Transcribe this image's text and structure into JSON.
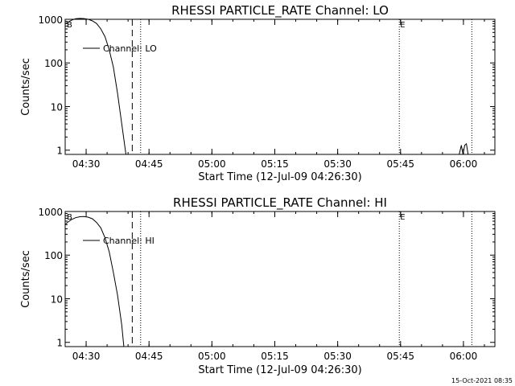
{
  "footer": {
    "timestamp": "15-Oct-2021 08:35"
  },
  "chart_data": [
    {
      "type": "line",
      "title": "RHESSI PARTICLE_RATE Channel: LO",
      "xlabel": "Start Time (12-Jul-09 04:26:30)",
      "ylabel": "Counts/sec",
      "yscale": "log",
      "xlim_minutes": [
        -1.5,
        101.0
      ],
      "ylim": [
        0.8,
        1000
      ],
      "x_tick_labels": [
        "04:30",
        "04:45",
        "05:00",
        "05:15",
        "05:30",
        "05:45",
        "06:00"
      ],
      "x_tick_minutes": [
        3.5,
        18.5,
        33.5,
        48.5,
        63.5,
        78.5,
        93.5
      ],
      "y_tick_labels": [
        "1",
        "10",
        "100",
        "1000"
      ],
      "y_tick_values": [
        1,
        10,
        100,
        1000
      ],
      "legend": {
        "label": "Channel: LO",
        "position": "top-left"
      },
      "series": [
        {
          "x_minutes": [
            -1.5,
            0.0,
            1.0,
            2.0,
            3.0,
            4.0,
            5.0,
            6.0,
            7.0,
            8.0,
            9.0,
            10.0,
            11.0,
            12.0,
            13.0
          ],
          "values": [
            800,
            950,
            1030,
            1050,
            1040,
            1000,
            920,
            800,
            600,
            400,
            200,
            80,
            20,
            4,
            0.8
          ]
        },
        {
          "x_minutes": [
            92.5,
            93.0,
            93.4,
            93.8,
            94.2,
            94.6
          ],
          "values": [
            0.8,
            1.3,
            0.8,
            1.3,
            1.4,
            0.8
          ]
        }
      ],
      "vlines": [
        {
          "x_minutes": 14.5,
          "style": "dashed"
        },
        {
          "x_minutes": 16.5,
          "style": "dotted"
        },
        {
          "x_minutes": 78.2,
          "style": "dotted"
        },
        {
          "x_minutes": 95.5,
          "style": "dotted"
        }
      ],
      "markers": [
        {
          "label": "B",
          "x_minutes": -1.3
        },
        {
          "label": "E",
          "x_minutes": 78.2
        }
      ]
    },
    {
      "type": "line",
      "title": "RHESSI PARTICLE_RATE Channel: HI",
      "xlabel": "Start Time (12-Jul-09 04:26:30)",
      "ylabel": "Counts/sec",
      "yscale": "log",
      "xlim_minutes": [
        -1.5,
        101.0
      ],
      "ylim": [
        0.8,
        1000
      ],
      "x_tick_labels": [
        "04:30",
        "04:45",
        "05:00",
        "05:15",
        "05:30",
        "05:45",
        "06:00"
      ],
      "x_tick_minutes": [
        3.5,
        18.5,
        33.5,
        48.5,
        63.5,
        78.5,
        93.5
      ],
      "y_tick_labels": [
        "1",
        "10",
        "100",
        "1000"
      ],
      "y_tick_values": [
        1,
        10,
        100,
        1000
      ],
      "legend": {
        "label": "Channel: HI",
        "position": "top-left"
      },
      "series": [
        {
          "x_minutes": [
            -1.5,
            -1.0,
            0.0,
            1.0,
            2.0,
            3.0,
            4.0,
            5.0,
            6.0,
            7.0,
            8.0,
            9.0,
            10.0,
            11.0,
            12.0,
            12.5
          ],
          "values": [
            500,
            560,
            650,
            720,
            760,
            770,
            740,
            680,
            560,
            420,
            250,
            120,
            40,
            12,
            2.5,
            0.8
          ]
        }
      ],
      "vlines": [
        {
          "x_minutes": 14.5,
          "style": "dashed"
        },
        {
          "x_minutes": 16.5,
          "style": "dotted"
        },
        {
          "x_minutes": 78.2,
          "style": "dotted"
        },
        {
          "x_minutes": 95.5,
          "style": "dotted"
        }
      ],
      "markers": [
        {
          "label": "B",
          "x_minutes": -1.3
        },
        {
          "label": "E",
          "x_minutes": 78.2
        }
      ]
    }
  ]
}
